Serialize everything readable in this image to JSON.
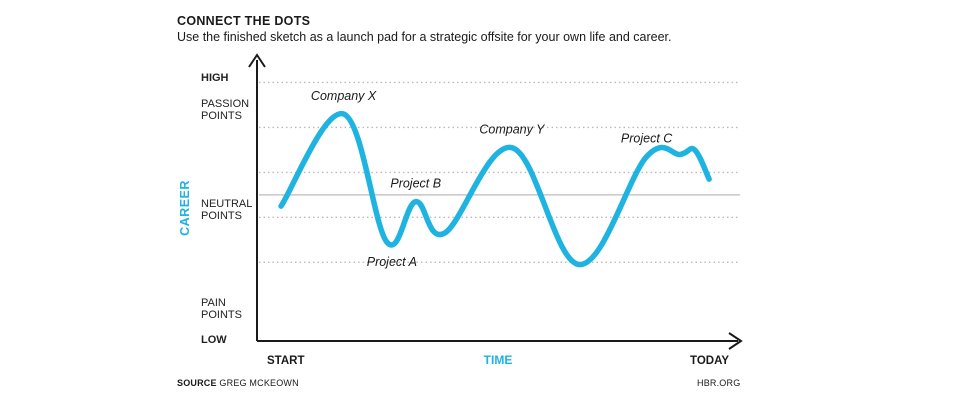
{
  "header": {
    "title": "CONNECT THE DOTS",
    "subtitle": "Use the finished sketch as a launch pad for a strategic offsite for your own life and career."
  },
  "footer": {
    "source_label": "SOURCE",
    "source_name": "GREG MCKEOWN",
    "site": "HBR.ORG"
  },
  "colors": {
    "accent": "#1eb3e0",
    "axis": "#1a1a1a",
    "gridline": "#bbbbbb"
  },
  "chart_data": {
    "type": "line",
    "xlabel": "TIME",
    "ylabel": "CAREER",
    "x_tick_labels": {
      "start": "START",
      "end": "TODAY"
    },
    "y_levels": [
      {
        "label": "HIGH",
        "value": 1.0
      },
      {
        "label": "PASSION POINTS",
        "line1": "PASSION",
        "line2": "POINTS",
        "value": 0.8
      },
      {
        "label": "NEUTRAL POINTS",
        "line1": "NEUTRAL",
        "line2": "POINTS",
        "value": 0.5
      },
      {
        "label": "PAIN POINTS",
        "line1": "PAIN",
        "line2": "POINTS",
        "value": 0.15
      },
      {
        "label": "LOW",
        "value": 0.0
      }
    ],
    "gridlines": [
      1.0,
      0.8,
      0.6,
      0.5,
      0.4,
      0.2
    ],
    "ylim": [
      -0.15,
      1.1
    ],
    "xlim": [
      0,
      1
    ],
    "series": [
      {
        "points": [
          [
            0.05,
            0.45
          ],
          [
            0.18,
            0.86
          ],
          [
            0.27,
            0.29
          ],
          [
            0.33,
            0.47
          ],
          [
            0.39,
            0.33
          ],
          [
            0.53,
            0.71
          ],
          [
            0.67,
            0.19
          ],
          [
            0.81,
            0.67
          ],
          [
            0.88,
            0.68
          ],
          [
            0.91,
            0.7
          ],
          [
            0.94,
            0.57
          ]
        ]
      }
    ],
    "annotations": [
      {
        "text": "Company X",
        "x": 0.18,
        "y": 0.86
      },
      {
        "text": "Project A",
        "x": 0.27,
        "y": 0.29
      },
      {
        "text": "Project B",
        "x": 0.33,
        "y": 0.47
      },
      {
        "text": "Company Y",
        "x": 0.53,
        "y": 0.71
      },
      {
        "text": "Project C",
        "x": 0.81,
        "y": 0.67
      }
    ],
    "grid": true,
    "legend": "none"
  }
}
